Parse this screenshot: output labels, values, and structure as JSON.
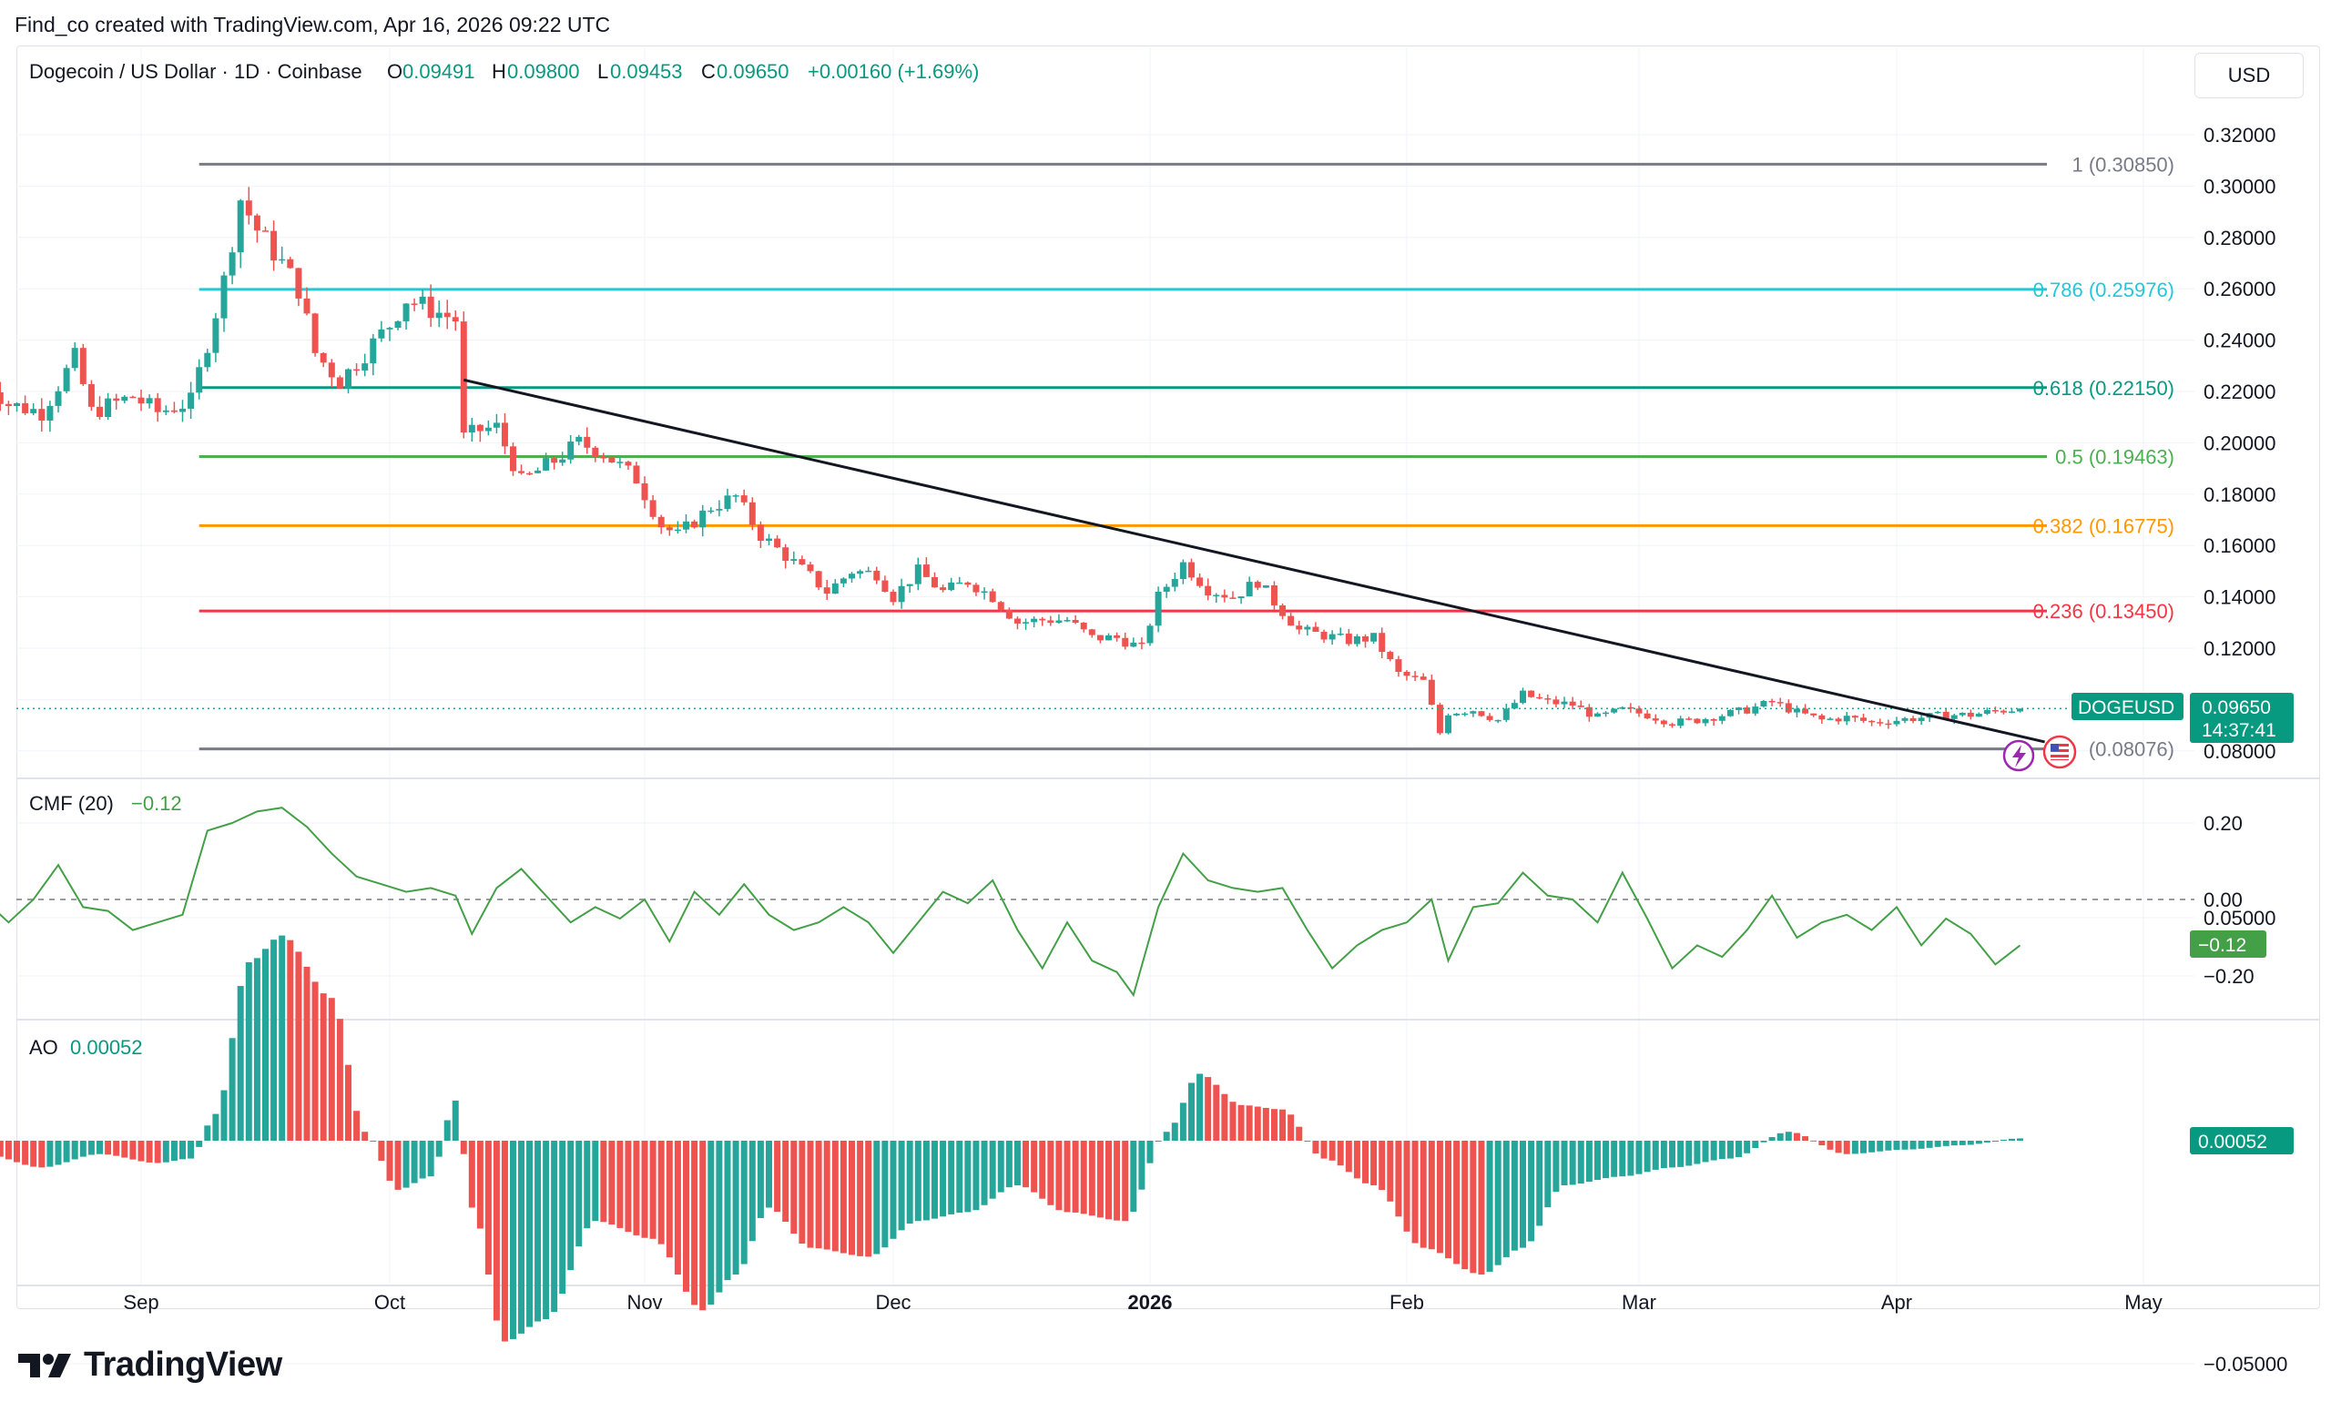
{
  "credit": "Find_co created with TradingView.com, Apr 16, 2026 09:22 UTC",
  "brand": "TradingView",
  "currency_button": "USD",
  "header": {
    "symbol_line": "Dogecoin / US Dollar · 1D · Coinbase",
    "o_label": "O",
    "o_value": "0.09491",
    "h_label": "H",
    "h_value": "0.09800",
    "l_label": "L",
    "l_value": "0.09453",
    "c_label": "C",
    "c_value": "0.09650",
    "change": "+0.00160 (+1.69%)"
  },
  "price_tag": {
    "symbol": "DOGEUSD",
    "price": "0.09650",
    "countdown": "14:37:41"
  },
  "cmf": {
    "label": "CMF (20)",
    "value": "−0.12",
    "tag": "−0.12"
  },
  "ao": {
    "label": "AO",
    "value": "0.00052",
    "tag": "0.00052"
  },
  "colors": {
    "up": "#26a69a",
    "down": "#ef5350",
    "cmf_line": "#43a047",
    "fib_1": "#787b86",
    "fib_786": "#26c6da",
    "fib_618": "#089981",
    "fib_5": "#4caf50",
    "fib_382": "#ff9800",
    "fib_236": "#f23645",
    "fib_0": "#787b86",
    "trendline": "#131722"
  },
  "chart_data": [
    {
      "type": "candlestick",
      "title": "Dogecoin / US Dollar · 1D · Coinbase",
      "y_ticks": [
        "0.32000",
        "0.30000",
        "0.28000",
        "0.26000",
        "0.24000",
        "0.22000",
        "0.20000",
        "0.18000",
        "0.16000",
        "0.14000",
        "0.12000",
        "0.10000",
        "0.08000"
      ],
      "ylim": [
        0.075,
        0.325
      ],
      "x_ticks": [
        "Sep",
        "Oct",
        "Nov",
        "Dec",
        "2026",
        "Feb",
        "Mar",
        "Apr",
        "May"
      ],
      "x_tick_dates": [
        "2025-09-01",
        "2025-10-01",
        "2025-11-01",
        "2025-12-01",
        "2026-01-01",
        "2026-02-01",
        "2026-03-01",
        "2026-04-01",
        "2026-05-01"
      ],
      "x_range": [
        "2025-08-13",
        "2026-05-07"
      ],
      "fib_levels": [
        {
          "label": "1 (0.30850)",
          "value": 0.3085,
          "color_key": "fib_1"
        },
        {
          "label": "0.786 (0.25976)",
          "value": 0.25976,
          "color_key": "fib_786"
        },
        {
          "label": "0.618 (0.22150)",
          "value": 0.2215,
          "color_key": "fib_618"
        },
        {
          "label": "0.5 (0.19463)",
          "value": 0.19463,
          "color_key": "fib_5"
        },
        {
          "label": "0.382 (0.16775)",
          "value": 0.16775,
          "color_key": "fib_382"
        },
        {
          "label": "0.236 (0.13450)",
          "value": 0.1345,
          "color_key": "fib_236"
        },
        {
          "label": "(0.08076)",
          "value": 0.08076,
          "color_key": "fib_0"
        }
      ],
      "fib_start_date": "2025-09-08",
      "trendline": {
        "from": [
          "2025-10-10",
          0.2245
        ],
        "to": [
          "2026-04-19",
          0.0835
        ]
      },
      "last_close": 0.0965,
      "close_path": [
        [
          "2025-08-13",
          0.225
        ],
        [
          "2025-08-16",
          0.215
        ],
        [
          "2025-08-20",
          0.212
        ],
        [
          "2025-08-24",
          0.233
        ],
        [
          "2025-08-26",
          0.212
        ],
        [
          "2025-08-31",
          0.218
        ],
        [
          "2025-09-03",
          0.212
        ],
        [
          "2025-09-07",
          0.216
        ],
        [
          "2025-09-09",
          0.239
        ],
        [
          "2025-09-11",
          0.263
        ],
        [
          "2025-09-13",
          0.295
        ],
        [
          "2025-09-15",
          0.283
        ],
        [
          "2025-09-18",
          0.27
        ],
        [
          "2025-09-20",
          0.26
        ],
        [
          "2025-09-22",
          0.235
        ],
        [
          "2025-09-25",
          0.224
        ],
        [
          "2025-09-28",
          0.235
        ],
        [
          "2025-10-01",
          0.246
        ],
        [
          "2025-10-03",
          0.256
        ],
        [
          "2025-10-06",
          0.252
        ],
        [
          "2025-10-09",
          0.248
        ],
        [
          "2025-10-10",
          0.202
        ],
        [
          "2025-10-12",
          0.205
        ],
        [
          "2025-10-14",
          0.206
        ],
        [
          "2025-10-17",
          0.185
        ],
        [
          "2025-10-21",
          0.193
        ],
        [
          "2025-10-24",
          0.2
        ],
        [
          "2025-10-27",
          0.196
        ],
        [
          "2025-10-31",
          0.186
        ],
        [
          "2025-11-03",
          0.168
        ],
        [
          "2025-11-05",
          0.164
        ],
        [
          "2025-11-09",
          0.175
        ],
        [
          "2025-11-12",
          0.179
        ],
        [
          "2025-11-15",
          0.164
        ],
        [
          "2025-11-18",
          0.156
        ],
        [
          "2025-11-21",
          0.148
        ],
        [
          "2025-11-23",
          0.142
        ],
        [
          "2025-11-26",
          0.15
        ],
        [
          "2025-11-29",
          0.149
        ],
        [
          "2025-12-01",
          0.14
        ],
        [
          "2025-12-04",
          0.15
        ],
        [
          "2025-12-07",
          0.142
        ],
        [
          "2025-12-10",
          0.146
        ],
        [
          "2025-12-13",
          0.14
        ],
        [
          "2025-12-16",
          0.13
        ],
        [
          "2025-12-19",
          0.131
        ],
        [
          "2025-12-22",
          0.131
        ],
        [
          "2025-12-25",
          0.124
        ],
        [
          "2025-12-28",
          0.124
        ],
        [
          "2025-12-31",
          0.12
        ],
        [
          "2026-01-02",
          0.14
        ],
        [
          "2026-01-05",
          0.153
        ],
        [
          "2026-01-08",
          0.143
        ],
        [
          "2026-01-11",
          0.14
        ],
        [
          "2026-01-14",
          0.146
        ],
        [
          "2026-01-16",
          0.138
        ],
        [
          "2026-01-19",
          0.127
        ],
        [
          "2026-01-22",
          0.125
        ],
        [
          "2026-01-25",
          0.123
        ],
        [
          "2026-01-28",
          0.124
        ],
        [
          "2026-01-31",
          0.11
        ],
        [
          "2026-02-03",
          0.107
        ],
        [
          "2026-02-05",
          0.087
        ],
        [
          "2026-02-06",
          0.095
        ],
        [
          "2026-02-09",
          0.096
        ],
        [
          "2026-02-12",
          0.092
        ],
        [
          "2026-02-15",
          0.102
        ],
        [
          "2026-02-18",
          0.099
        ],
        [
          "2026-02-21",
          0.098
        ],
        [
          "2026-02-24",
          0.093
        ],
        [
          "2026-02-27",
          0.096
        ],
        [
          "2026-03-02",
          0.094
        ],
        [
          "2026-03-05",
          0.091
        ],
        [
          "2026-03-08",
          0.092
        ],
        [
          "2026-03-11",
          0.094
        ],
        [
          "2026-03-14",
          0.096
        ],
        [
          "2026-03-17",
          0.099
        ],
        [
          "2026-03-20",
          0.095
        ],
        [
          "2026-03-23",
          0.092
        ],
        [
          "2026-03-26",
          0.093
        ],
        [
          "2026-03-29",
          0.091
        ],
        [
          "2026-04-01",
          0.092
        ],
        [
          "2026-04-04",
          0.093
        ],
        [
          "2026-04-07",
          0.094
        ],
        [
          "2026-04-10",
          0.094
        ],
        [
          "2026-04-13",
          0.0955
        ],
        [
          "2026-04-16",
          0.0965
        ]
      ]
    },
    {
      "type": "line",
      "title": "CMF (20)",
      "y_ticks": [
        "0.20",
        "0.00",
        "−0.20"
      ],
      "ylim": [
        -0.32,
        0.3
      ],
      "zero_line": true,
      "last_value": -0.12,
      "path": [
        [
          "2025-08-13",
          0.0
        ],
        [
          "2025-08-16",
          -0.06
        ],
        [
          "2025-08-19",
          0.0
        ],
        [
          "2025-08-22",
          0.09
        ],
        [
          "2025-08-25",
          -0.02
        ],
        [
          "2025-08-28",
          -0.03
        ],
        [
          "2025-08-31",
          -0.08
        ],
        [
          "2025-09-03",
          -0.06
        ],
        [
          "2025-09-06",
          -0.04
        ],
        [
          "2025-09-09",
          0.18
        ],
        [
          "2025-09-12",
          0.2
        ],
        [
          "2025-09-15",
          0.23
        ],
        [
          "2025-09-18",
          0.24
        ],
        [
          "2025-09-21",
          0.19
        ],
        [
          "2025-09-24",
          0.12
        ],
        [
          "2025-09-27",
          0.06
        ],
        [
          "2025-09-30",
          0.04
        ],
        [
          "2025-10-03",
          0.02
        ],
        [
          "2025-10-06",
          0.03
        ],
        [
          "2025-10-09",
          0.01
        ],
        [
          "2025-10-11",
          -0.09
        ],
        [
          "2025-10-14",
          0.03
        ],
        [
          "2025-10-17",
          0.08
        ],
        [
          "2025-10-20",
          0.01
        ],
        [
          "2025-10-23",
          -0.06
        ],
        [
          "2025-10-26",
          -0.02
        ],
        [
          "2025-10-29",
          -0.05
        ],
        [
          "2025-11-01",
          0.0
        ],
        [
          "2025-11-04",
          -0.11
        ],
        [
          "2025-11-07",
          0.02
        ],
        [
          "2025-11-10",
          -0.04
        ],
        [
          "2025-11-13",
          0.04
        ],
        [
          "2025-11-16",
          -0.04
        ],
        [
          "2025-11-19",
          -0.08
        ],
        [
          "2025-11-22",
          -0.06
        ],
        [
          "2025-11-25",
          -0.02
        ],
        [
          "2025-11-28",
          -0.06
        ],
        [
          "2025-12-01",
          -0.14
        ],
        [
          "2025-12-04",
          -0.06
        ],
        [
          "2025-12-07",
          0.02
        ],
        [
          "2025-12-10",
          -0.01
        ],
        [
          "2025-12-13",
          0.05
        ],
        [
          "2025-12-16",
          -0.08
        ],
        [
          "2025-12-19",
          -0.18
        ],
        [
          "2025-12-22",
          -0.06
        ],
        [
          "2025-12-25",
          -0.16
        ],
        [
          "2025-12-28",
          -0.19
        ],
        [
          "2025-12-30",
          -0.25
        ],
        [
          "2026-01-02",
          -0.02
        ],
        [
          "2026-01-05",
          0.12
        ],
        [
          "2026-01-08",
          0.05
        ],
        [
          "2026-01-11",
          0.03
        ],
        [
          "2026-01-14",
          0.02
        ],
        [
          "2026-01-17",
          0.03
        ],
        [
          "2026-01-20",
          -0.08
        ],
        [
          "2026-01-23",
          -0.18
        ],
        [
          "2026-01-26",
          -0.12
        ],
        [
          "2026-01-29",
          -0.08
        ],
        [
          "2026-02-01",
          -0.06
        ],
        [
          "2026-02-04",
          0.0
        ],
        [
          "2026-02-06",
          -0.16
        ],
        [
          "2026-02-09",
          -0.02
        ],
        [
          "2026-02-12",
          -0.01
        ],
        [
          "2026-02-15",
          0.07
        ],
        [
          "2026-02-18",
          0.01
        ],
        [
          "2026-02-21",
          0.0
        ],
        [
          "2026-02-24",
          -0.06
        ],
        [
          "2026-02-27",
          0.07
        ],
        [
          "2026-03-02",
          -0.05
        ],
        [
          "2026-03-05",
          -0.18
        ],
        [
          "2026-03-08",
          -0.12
        ],
        [
          "2026-03-11",
          -0.15
        ],
        [
          "2026-03-14",
          -0.08
        ],
        [
          "2026-03-17",
          0.01
        ],
        [
          "2026-03-20",
          -0.1
        ],
        [
          "2026-03-23",
          -0.06
        ],
        [
          "2026-03-26",
          -0.04
        ],
        [
          "2026-03-29",
          -0.08
        ],
        [
          "2026-04-01",
          -0.02
        ],
        [
          "2026-04-04",
          -0.12
        ],
        [
          "2026-04-07",
          -0.05
        ],
        [
          "2026-04-10",
          -0.09
        ],
        [
          "2026-04-13",
          -0.17
        ],
        [
          "2026-04-16",
          -0.12
        ]
      ]
    },
    {
      "type": "bar",
      "title": "AO",
      "y_ticks": [
        "0.05000",
        "−0.05000"
      ],
      "ylim": [
        -0.06,
        0.06
      ],
      "last_value": 0.00052,
      "keyframes": [
        [
          "2025-08-13",
          -0.003
        ],
        [
          "2025-08-20",
          -0.006
        ],
        [
          "2025-08-27",
          -0.003
        ],
        [
          "2025-09-03",
          -0.005
        ],
        [
          "2025-09-07",
          -0.004
        ],
        [
          "2025-09-10",
          0.006
        ],
        [
          "2025-09-14",
          0.04
        ],
        [
          "2025-09-18",
          0.046
        ],
        [
          "2025-09-24",
          0.032
        ],
        [
          "2025-09-28",
          0.002
        ],
        [
          "2025-10-02",
          -0.011
        ],
        [
          "2025-10-06",
          -0.008
        ],
        [
          "2025-10-09",
          0.009
        ],
        [
          "2025-10-11",
          -0.015
        ],
        [
          "2025-10-15",
          -0.045
        ],
        [
          "2025-10-20",
          -0.04
        ],
        [
          "2025-10-26",
          -0.018
        ],
        [
          "2025-11-02",
          -0.022
        ],
        [
          "2025-11-08",
          -0.038
        ],
        [
          "2025-11-12",
          -0.03
        ],
        [
          "2025-11-16",
          -0.015
        ],
        [
          "2025-11-21",
          -0.024
        ],
        [
          "2025-11-28",
          -0.026
        ],
        [
          "2025-12-04",
          -0.018
        ],
        [
          "2025-12-10",
          -0.016
        ],
        [
          "2025-12-16",
          -0.01
        ],
        [
          "2025-12-22",
          -0.016
        ],
        [
          "2025-12-29",
          -0.018
        ],
        [
          "2026-01-03",
          0.002
        ],
        [
          "2026-01-07",
          0.015
        ],
        [
          "2026-01-12",
          0.008
        ],
        [
          "2026-01-17",
          0.007
        ],
        [
          "2026-01-22",
          -0.004
        ],
        [
          "2026-01-28",
          -0.01
        ],
        [
          "2026-02-03",
          -0.024
        ],
        [
          "2026-02-10",
          -0.03
        ],
        [
          "2026-02-15",
          -0.024
        ],
        [
          "2026-02-20",
          -0.01
        ],
        [
          "2026-02-27",
          -0.008
        ],
        [
          "2026-03-05",
          -0.006
        ],
        [
          "2026-03-12",
          -0.004
        ],
        [
          "2026-03-19",
          0.002
        ],
        [
          "2026-03-26",
          -0.003
        ],
        [
          "2026-04-02",
          -0.002
        ],
        [
          "2026-04-09",
          -0.001
        ],
        [
          "2026-04-16",
          0.00052
        ]
      ]
    }
  ]
}
